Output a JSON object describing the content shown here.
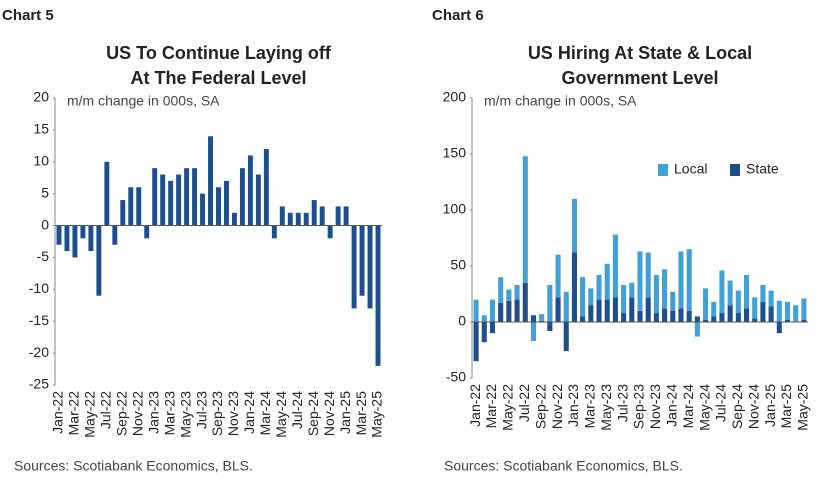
{
  "chart_data": [
    {
      "type": "bar",
      "label": "Chart 5",
      "title": [
        "US To Continue Laying off",
        "At The Federal Level"
      ],
      "subtitle": "m/m change in 000s, SA",
      "source": "Sources: Scotiabank Economics, BLS.",
      "categories": [
        "Jan-22",
        null,
        "Mar-22",
        null,
        "May-22",
        null,
        "Jul-22",
        null,
        "Sep-22",
        null,
        "Nov-22",
        null,
        "Jan-23",
        null,
        "Mar-23",
        null,
        "May-23",
        null,
        "Jul-23",
        null,
        "Sep-23",
        null,
        "Nov-23",
        null,
        "Jan-24",
        null,
        "Mar-24",
        null,
        "May-24",
        null,
        "Jul-24",
        null,
        "Sep-24",
        null,
        "Nov-24",
        null,
        "Jan-25",
        null,
        "Mar-25",
        null,
        "May-25"
      ],
      "values": [
        -3,
        -4,
        -5,
        -2,
        -4,
        -11,
        10,
        -3,
        4,
        6,
        6,
        -2,
        9,
        8,
        7,
        8,
        9,
        9,
        5,
        14,
        6,
        7,
        2,
        9,
        11,
        8,
        12,
        -2,
        3,
        2,
        2,
        2,
        4,
        3,
        -2,
        3,
        3,
        -13,
        -11,
        -13,
        -22
      ],
      "color": "#1f4e8c",
      "ylim": [
        -25,
        20
      ],
      "yticks": [
        -25,
        -20,
        -15,
        -10,
        -5,
        0,
        5,
        10,
        15,
        20
      ]
    },
    {
      "type": "stacked_bar",
      "label": "Chart 6",
      "title": [
        "US Hiring At State & Local",
        "Government Level"
      ],
      "subtitle": "m/m change in 000s, SA",
      "source": "Sources: Scotiabank Economics, BLS.",
      "categories": [
        "Jan-22",
        null,
        "Mar-22",
        null,
        "May-22",
        null,
        "Jul-22",
        null,
        "Sep-22",
        null,
        "Nov-22",
        null,
        "Jan-23",
        null,
        "Mar-23",
        null,
        "May-23",
        null,
        "Jul-23",
        null,
        "Sep-23",
        null,
        "Nov-23",
        null,
        "Jan-24",
        null,
        "Mar-24",
        null,
        "May-24",
        null,
        "Jul-24",
        null,
        "Sep-24",
        null,
        "Nov-24",
        null,
        "Jan-25",
        null,
        "Mar-25",
        null,
        "May-25"
      ],
      "series": [
        {
          "name": "State",
          "color": "#1f4e8c",
          "values": [
            -35,
            -18,
            -10,
            17,
            19,
            20,
            35,
            6,
            1,
            -8,
            22,
            -26,
            62,
            5,
            15,
            20,
            20,
            22,
            8,
            22,
            10,
            22,
            8,
            12,
            10,
            12,
            10,
            5,
            2,
            5,
            8,
            15,
            8,
            12,
            3,
            18,
            14,
            -10,
            2,
            0,
            2
          ]
        },
        {
          "name": "Local",
          "color": "#41a0d5",
          "values": [
            20,
            6,
            20,
            23,
            10,
            13,
            113,
            -17,
            6,
            33,
            38,
            27,
            48,
            35,
            15,
            22,
            32,
            56,
            25,
            13,
            53,
            40,
            34,
            35,
            17,
            51,
            55,
            -13,
            28,
            13,
            38,
            22,
            20,
            30,
            19,
            15,
            14,
            19,
            16,
            15,
            19
          ]
        }
      ],
      "legend_position": "upper right",
      "ylim": [
        -50,
        200
      ],
      "yticks": [
        -50,
        0,
        50,
        100,
        150,
        200
      ]
    }
  ]
}
